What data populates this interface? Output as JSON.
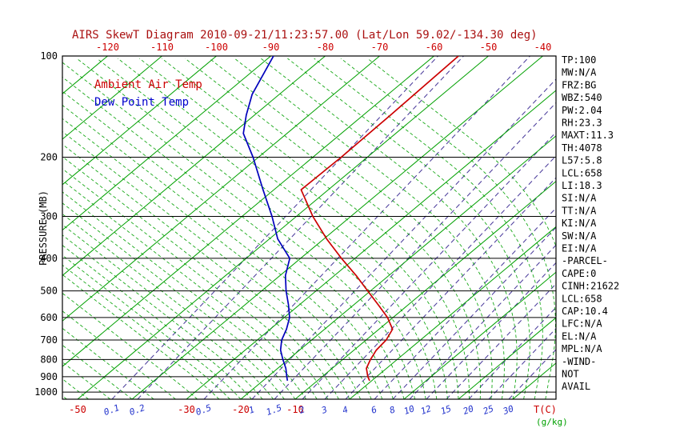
{
  "title": "AIRS SkewT Diagram 2010-09-21/11:23:57.00 (Lat/Lon 59.02/-134.30 deg)",
  "legend": {
    "temp_label": "Ambient Air Temp",
    "dew_label": "Dew Point Temp"
  },
  "axes": {
    "y_label": "PRESSURE (MB)",
    "x_label": "T(C)",
    "mixing_unit_label": "(g/kg)",
    "pressure_ticks": [
      100,
      200,
      300,
      400,
      500,
      600,
      700,
      800,
      900,
      1000
    ],
    "top_temperature_ticks": [
      -120,
      -110,
      -100,
      -90,
      -80,
      -70,
      -60,
      -50,
      -40
    ],
    "bottom_temperature_ticks": [
      -50,
      -30,
      -20,
      -10
    ],
    "mixing_ratio_ticks": [
      0.1,
      0.2,
      0.5,
      1,
      1.5,
      2,
      3,
      4,
      6,
      8,
      10,
      12,
      15,
      20,
      25,
      30
    ]
  },
  "stats_panel": {
    "lines": [
      "TP:100",
      "MW:N/A",
      "FRZ:BG",
      "WBZ:540",
      "PW:2.04",
      "RH:23.3",
      "MAXT:11.3",
      "TH:4078",
      "L57:5.8",
      "LCL:658",
      "LI:18.3",
      "SI:N/A",
      "TT:N/A",
      "KI:N/A",
      "SW:N/A",
      "EI:N/A",
      "-PARCEL-",
      "CAPE:0",
      "CINH:21622",
      "LCL:658",
      "CAP:10.4",
      "LFC:N/A",
      "EL:N/A",
      "MPL:N/A",
      "-WIND-",
      "NOT",
      "AVAIL"
    ]
  },
  "colors": {
    "title": "#aa1111",
    "temperature_curve": "#cc0000",
    "dewpoint_curve": "#0000bb",
    "isotherm": "#00a000",
    "moist_adiabat": "#00a000",
    "mixing_line": "#4a3b9b",
    "mixing_label": "#2233cc",
    "temp_tick_label": "#cc0000",
    "gkg_label": "#00a000",
    "axis": "#000000"
  },
  "chart_data": {
    "type": "line",
    "title": "AIRS SkewT Diagram 2010-09-21/11:23:57.00 (Lat/Lon 59.02/-134.30 deg)",
    "xlabel": "T(C)",
    "ylabel": "PRESSURE (MB)",
    "y_scale": "log-pressure",
    "ylim": [
      1050,
      100
    ],
    "top_axis_temps_c": [
      -120,
      -110,
      -100,
      -90,
      -80,
      -70,
      -60,
      -50,
      -40
    ],
    "bottom_axis_temps_c": [
      -50,
      -30,
      -20,
      -10
    ],
    "mixing_ratio_lines_g_kg": [
      0.1,
      0.2,
      0.5,
      1,
      1.5,
      2,
      3,
      4,
      6,
      8,
      10,
      12,
      15,
      20,
      25,
      30
    ],
    "grid": [
      "isobars",
      "isotherms",
      "moist-adiabats",
      "mixing-ratio-lines"
    ],
    "legend_position": "top-left-inside",
    "series": [
      {
        "name": "Ambient Air Temp",
        "color": "#cc0000",
        "points_pressure_mb_temp_c": [
          [
            100,
            -55.5
          ],
          [
            150,
            -55
          ],
          [
            200,
            -54.8
          ],
          [
            250,
            -55
          ],
          [
            300,
            -47
          ],
          [
            350,
            -39.5
          ],
          [
            400,
            -32.5
          ],
          [
            450,
            -26
          ],
          [
            500,
            -20.5
          ],
          [
            550,
            -15.5
          ],
          [
            600,
            -11
          ],
          [
            650,
            -7.5
          ],
          [
            700,
            -6.3
          ],
          [
            750,
            -5.9
          ],
          [
            800,
            -4.9
          ],
          [
            850,
            -3.7
          ],
          [
            900,
            -1.6
          ],
          [
            925,
            -0.4
          ]
        ]
      },
      {
        "name": "Dew Point Temp",
        "color": "#0000bb",
        "points_pressure_mb_temp_c": [
          [
            100,
            -89.5
          ],
          [
            130,
            -85
          ],
          [
            150,
            -81.5
          ],
          [
            170,
            -78
          ],
          [
            200,
            -71
          ],
          [
            250,
            -62
          ],
          [
            300,
            -54.5
          ],
          [
            350,
            -48.5
          ],
          [
            400,
            -42
          ],
          [
            450,
            -39
          ],
          [
            500,
            -35.5
          ],
          [
            550,
            -32
          ],
          [
            600,
            -29
          ],
          [
            650,
            -27
          ],
          [
            700,
            -25.5
          ],
          [
            750,
            -23.5
          ],
          [
            800,
            -21
          ],
          [
            850,
            -18.5
          ],
          [
            900,
            -16.5
          ],
          [
            925,
            -15.5
          ]
        ]
      }
    ]
  }
}
